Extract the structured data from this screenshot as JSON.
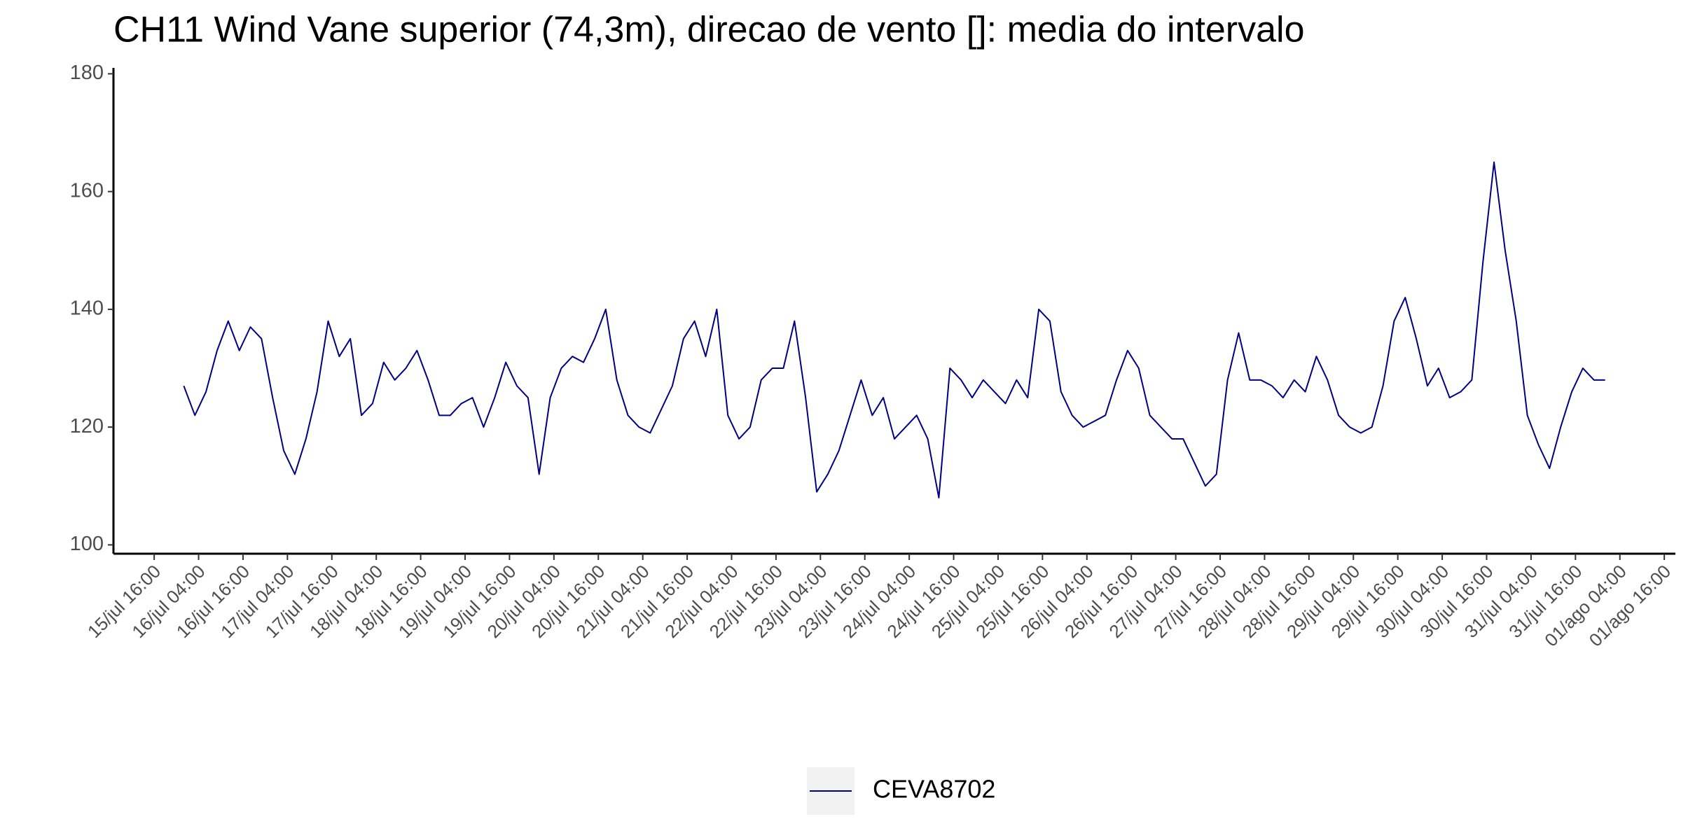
{
  "chart_data": {
    "type": "line",
    "title": "CH11 Wind Vane superior (74,3m), direcao de vento []: media do intervalo",
    "x": [
      "16/jul 00:00",
      "16/jul 03:00",
      "16/jul 06:00",
      "16/jul 09:00",
      "16/jul 12:00",
      "16/jul 15:00",
      "16/jul 18:00",
      "16/jul 21:00",
      "17/jul 00:00",
      "17/jul 03:00",
      "17/jul 06:00",
      "17/jul 09:00",
      "17/jul 12:00",
      "17/jul 15:00",
      "17/jul 18:00",
      "17/jul 21:00",
      "18/jul 00:00",
      "18/jul 03:00",
      "18/jul 06:00",
      "18/jul 09:00",
      "18/jul 12:00",
      "18/jul 15:00",
      "18/jul 18:00",
      "18/jul 21:00",
      "19/jul 00:00",
      "19/jul 03:00",
      "19/jul 06:00",
      "19/jul 09:00",
      "19/jul 12:00",
      "19/jul 15:00",
      "19/jul 18:00",
      "19/jul 21:00",
      "20/jul 00:00",
      "20/jul 03:00",
      "20/jul 06:00",
      "20/jul 09:00",
      "20/jul 12:00",
      "20/jul 15:00",
      "20/jul 18:00",
      "20/jul 21:00",
      "21/jul 00:00",
      "21/jul 03:00",
      "21/jul 06:00",
      "21/jul 09:00",
      "21/jul 12:00",
      "21/jul 15:00",
      "21/jul 18:00",
      "21/jul 21:00",
      "22/jul 00:00",
      "22/jul 03:00",
      "22/jul 06:00",
      "22/jul 09:00",
      "22/jul 12:00",
      "22/jul 15:00",
      "22/jul 18:00",
      "22/jul 21:00",
      "23/jul 00:00",
      "23/jul 03:00",
      "23/jul 06:00",
      "23/jul 09:00",
      "23/jul 12:00",
      "23/jul 15:00",
      "23/jul 18:00",
      "23/jul 21:00",
      "24/jul 00:00",
      "24/jul 03:00",
      "24/jul 06:00",
      "24/jul 09:00",
      "24/jul 12:00",
      "24/jul 15:00",
      "24/jul 18:00",
      "24/jul 21:00",
      "25/jul 00:00",
      "25/jul 03:00",
      "25/jul 06:00",
      "25/jul 09:00",
      "25/jul 12:00",
      "25/jul 15:00",
      "25/jul 18:00",
      "25/jul 21:00",
      "26/jul 00:00",
      "26/jul 03:00",
      "26/jul 06:00",
      "26/jul 09:00",
      "26/jul 12:00",
      "26/jul 15:00",
      "26/jul 18:00",
      "26/jul 21:00",
      "27/jul 00:00",
      "27/jul 03:00",
      "27/jul 06:00",
      "27/jul 09:00",
      "27/jul 12:00",
      "27/jul 15:00",
      "27/jul 18:00",
      "27/jul 21:00",
      "28/jul 00:00",
      "28/jul 03:00",
      "28/jul 06:00",
      "28/jul 09:00",
      "28/jul 12:00",
      "28/jul 15:00",
      "28/jul 18:00",
      "28/jul 21:00",
      "29/jul 00:00",
      "29/jul 03:00",
      "29/jul 06:00",
      "29/jul 09:00",
      "29/jul 12:00",
      "29/jul 15:00",
      "29/jul 18:00",
      "29/jul 21:00",
      "30/jul 00:00",
      "30/jul 03:00",
      "30/jul 06:00",
      "30/jul 09:00",
      "30/jul 12:00",
      "30/jul 15:00",
      "30/jul 18:00",
      "30/jul 21:00",
      "31/jul 00:00",
      "31/jul 03:00",
      "31/jul 06:00",
      "31/jul 09:00",
      "31/jul 12:00",
      "31/jul 15:00",
      "31/jul 18:00",
      "31/jul 21:00",
      "01/ago 00:00"
    ],
    "series": [
      {
        "name": "CEVA8702",
        "color": "#000080",
        "values": [
          127,
          122,
          126,
          133,
          138,
          133,
          137,
          135,
          125,
          116,
          112,
          118,
          126,
          138,
          132,
          135,
          122,
          124,
          131,
          128,
          130,
          133,
          128,
          122,
          122,
          124,
          125,
          120,
          125,
          131,
          127,
          125,
          112,
          125,
          130,
          132,
          131,
          135,
          140,
          128,
          122,
          120,
          119,
          123,
          127,
          135,
          138,
          132,
          140,
          122,
          118,
          120,
          128,
          130,
          130,
          138,
          125,
          109,
          112,
          116,
          122,
          128,
          122,
          125,
          118,
          120,
          122,
          118,
          108,
          130,
          128,
          125,
          128,
          126,
          124,
          128,
          125,
          140,
          138,
          126,
          122,
          120,
          121,
          122,
          128,
          133,
          130,
          122,
          120,
          118,
          118,
          114,
          110,
          112,
          128,
          136,
          128,
          128,
          127,
          125,
          128,
          126,
          132,
          128,
          122,
          120,
          119,
          120,
          127,
          138,
          142,
          135,
          127,
          130,
          125,
          126,
          128,
          148,
          165,
          150,
          138,
          122,
          117,
          113,
          120,
          126,
          130,
          128,
          128
        ]
      }
    ],
    "xlim": [
      "15/jul 05:00",
      "01/ago 19:00"
    ],
    "xticks": [
      "15/jul 16:00",
      "16/jul 04:00",
      "16/jul 16:00",
      "17/jul 04:00",
      "17/jul 16:00",
      "18/jul 04:00",
      "18/jul 16:00",
      "19/jul 04:00",
      "19/jul 16:00",
      "20/jul 04:00",
      "20/jul 16:00",
      "21/jul 04:00",
      "21/jul 16:00",
      "22/jul 04:00",
      "22/jul 16:00",
      "23/jul 04:00",
      "23/jul 16:00",
      "24/jul 04:00",
      "24/jul 16:00",
      "25/jul 04:00",
      "25/jul 16:00",
      "26/jul 04:00",
      "26/jul 16:00",
      "27/jul 04:00",
      "27/jul 16:00",
      "28/jul 04:00",
      "28/jul 16:00",
      "29/jul 04:00",
      "29/jul 16:00",
      "30/jul 04:00",
      "30/jul 16:00",
      "31/jul 04:00",
      "31/jul 16:00",
      "01/ago 04:00",
      "01/ago 16:00"
    ],
    "ylim": [
      98.5,
      181
    ],
    "yticks": [
      100,
      120,
      140,
      160,
      180
    ],
    "grid": false,
    "legend": "bottom"
  }
}
